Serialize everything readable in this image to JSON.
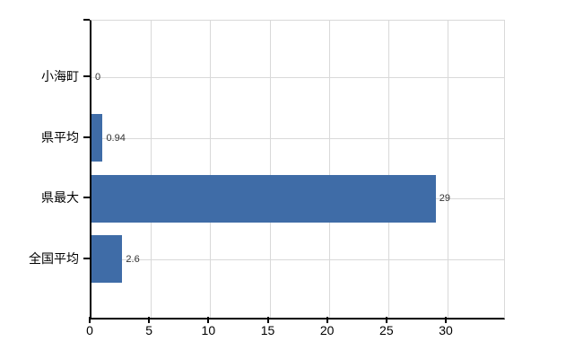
{
  "chart_data": {
    "type": "bar",
    "orientation": "horizontal",
    "title": "",
    "xlabel": "",
    "ylabel": "",
    "categories": [
      "小海町",
      "県平均",
      "県最大",
      "全国平均"
    ],
    "values": [
      0,
      0.94,
      29,
      2.6
    ],
    "value_labels": [
      "0",
      "0.94",
      "29",
      "2.6"
    ],
    "xticks": [
      0,
      5,
      10,
      15,
      20,
      25,
      30
    ],
    "xlim": [
      0,
      34.8
    ],
    "grid": true,
    "legend_position": "none"
  },
  "colors": {
    "bar": "#3f6ca7",
    "gridline": "#d9d9d9",
    "axis": "#000000",
    "category_label": "#000000",
    "tick_label": "#000000",
    "value_label": "#333333",
    "background": "#ffffff"
  }
}
